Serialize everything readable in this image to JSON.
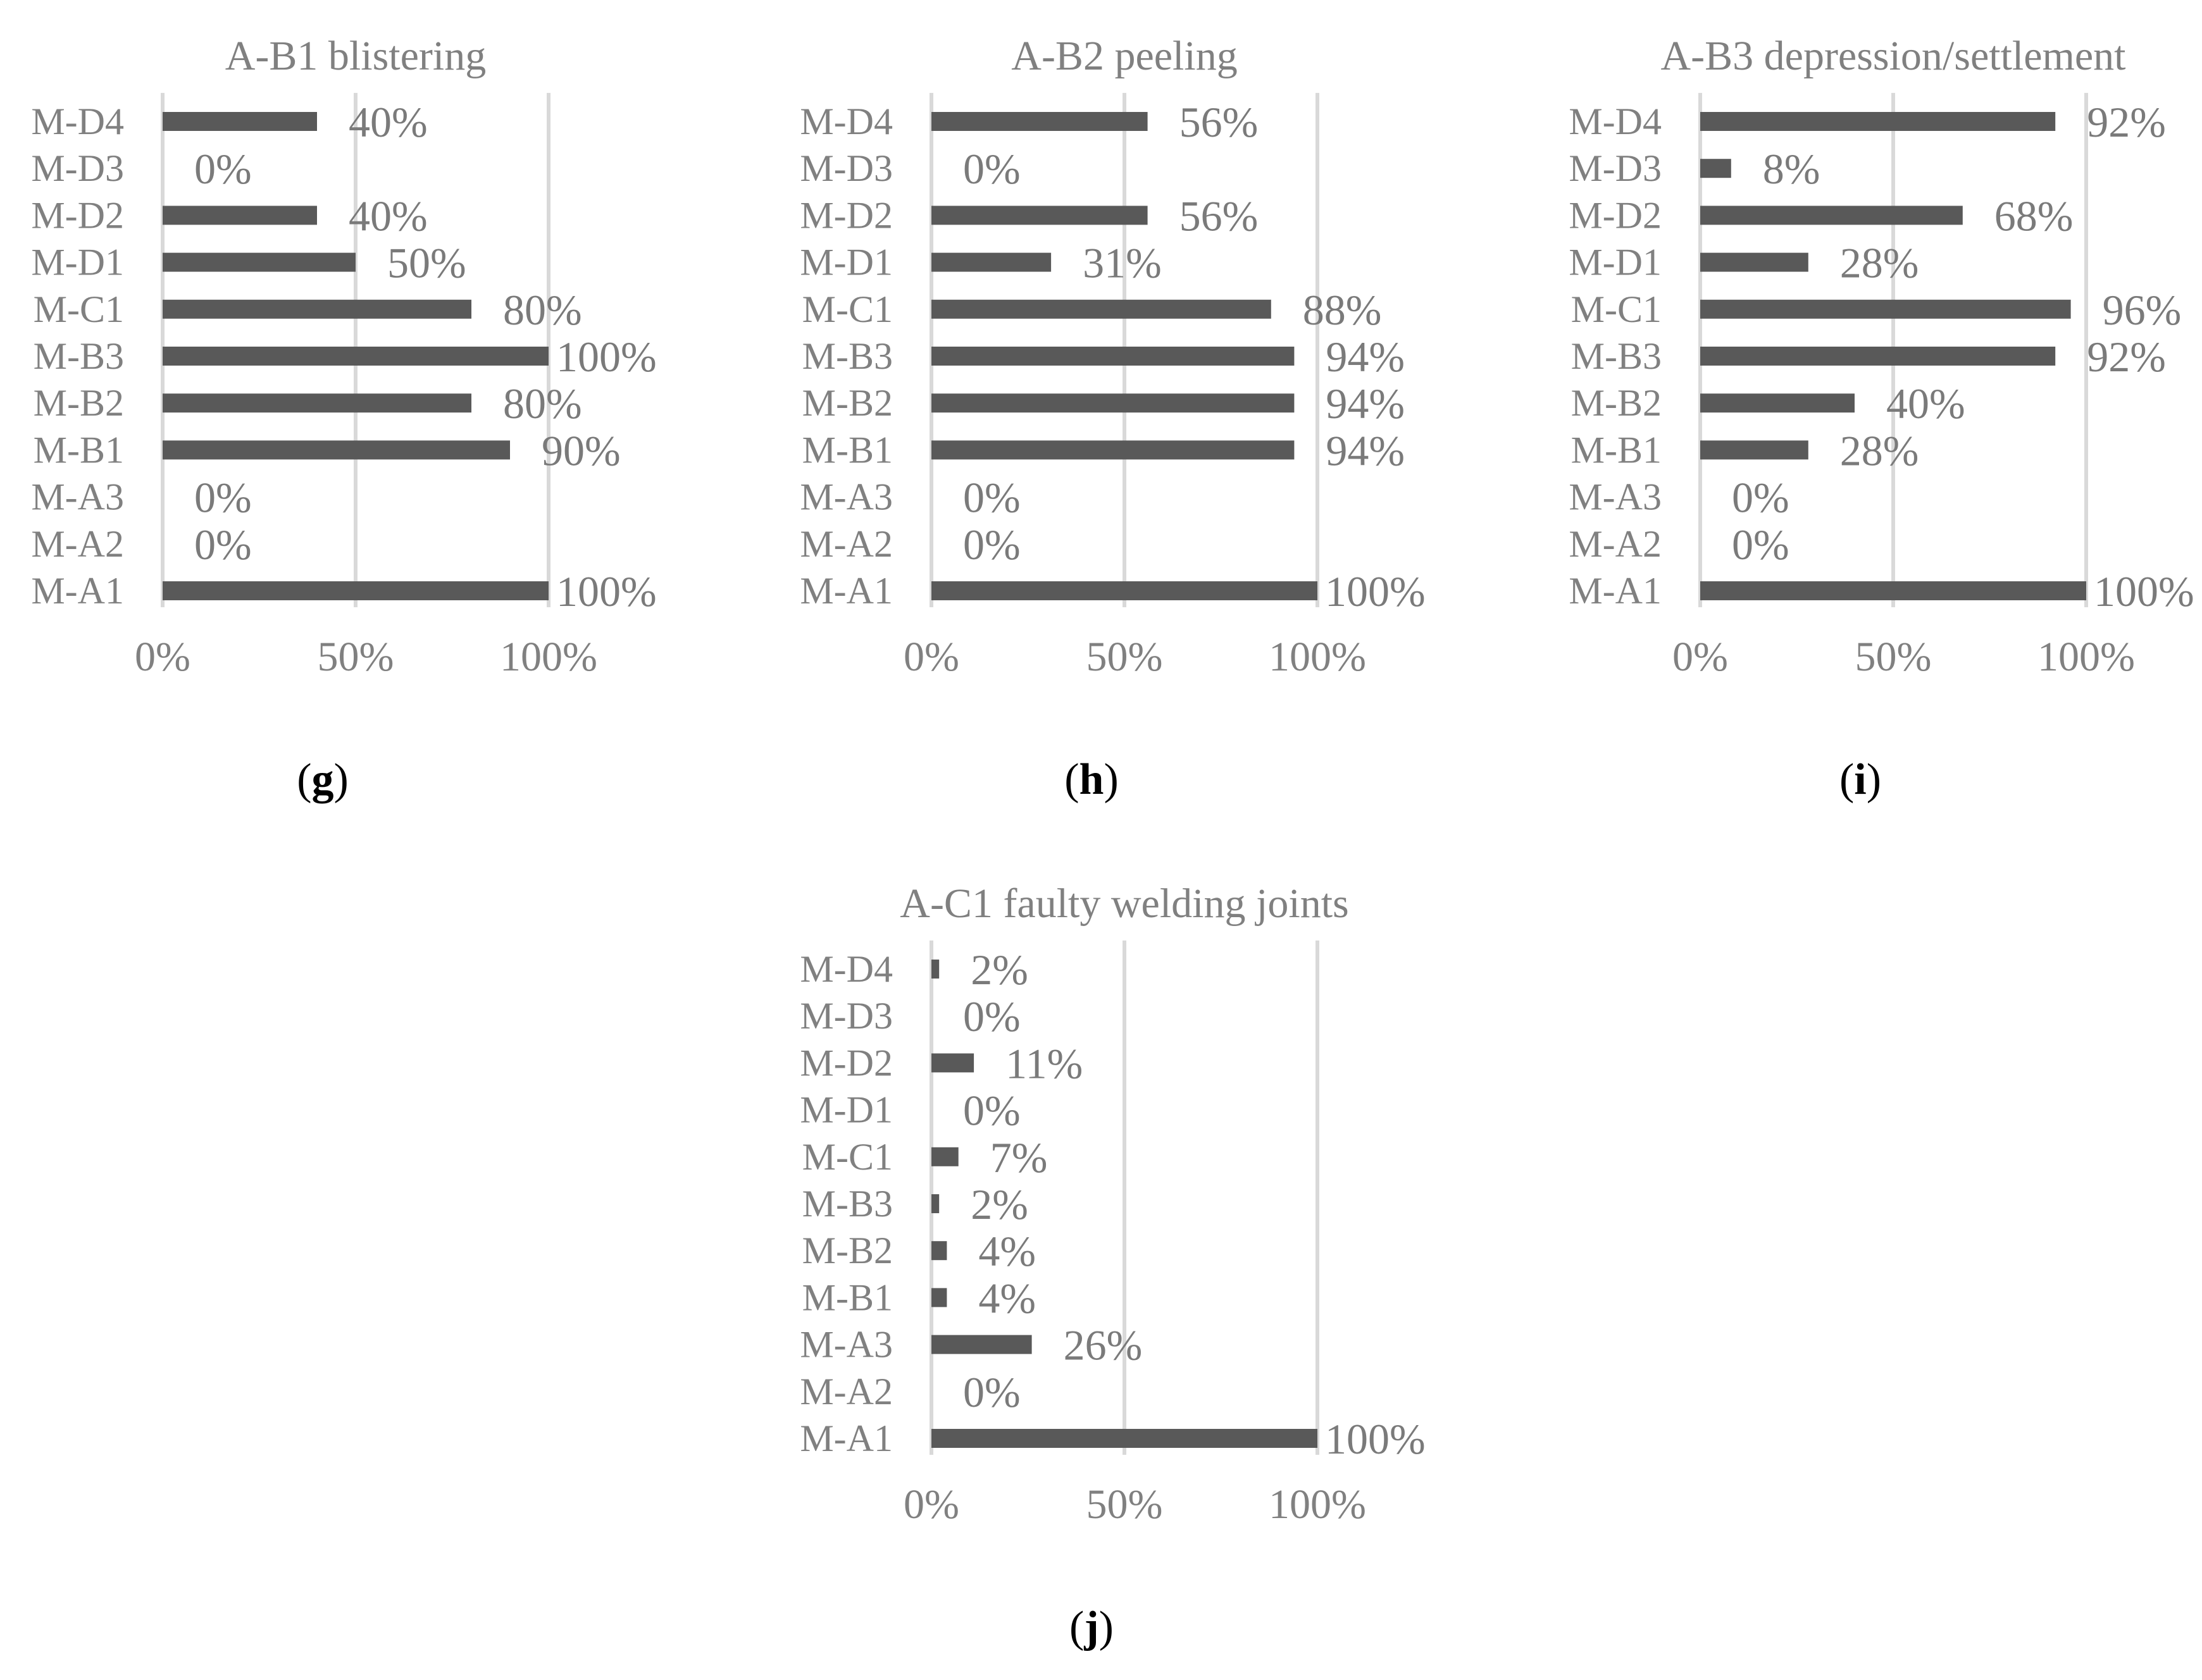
{
  "chart_data": [
    {
      "type": "bar",
      "orientation": "horizontal",
      "title": "A-B1 blistering",
      "caption_letter": "g",
      "categories": [
        "M-A1",
        "M-A2",
        "M-A3",
        "M-B1",
        "M-B2",
        "M-B3",
        "M-C1",
        "M-D1",
        "M-D2",
        "M-D3",
        "M-D4"
      ],
      "values": [
        100,
        0,
        0,
        90,
        80,
        100,
        80,
        50,
        40,
        0,
        40
      ],
      "value_labels": [
        "100%",
        "0%",
        "0%",
        "90%",
        "80%",
        "100%",
        "80%",
        "50%",
        "40%",
        "0%",
        "40%"
      ],
      "xticks": [
        "0%",
        "50%",
        "100%"
      ],
      "xlim": [
        0,
        100
      ],
      "grid": true,
      "legend": "none",
      "bar_color": "#595959"
    },
    {
      "type": "bar",
      "orientation": "horizontal",
      "title": "A-B2 peeling",
      "caption_letter": "h",
      "categories": [
        "M-A1",
        "M-A2",
        "M-A3",
        "M-B1",
        "M-B2",
        "M-B3",
        "M-C1",
        "M-D1",
        "M-D2",
        "M-D3",
        "M-D4"
      ],
      "values": [
        100,
        0,
        0,
        94,
        94,
        94,
        88,
        31,
        56,
        0,
        56
      ],
      "value_labels": [
        "100%",
        "0%",
        "0%",
        "94%",
        "94%",
        "94%",
        "88%",
        "31%",
        "56%",
        "0%",
        "56%"
      ],
      "xticks": [
        "0%",
        "50%",
        "100%"
      ],
      "xlim": [
        0,
        100
      ],
      "grid": true,
      "legend": "none",
      "bar_color": "#595959"
    },
    {
      "type": "bar",
      "orientation": "horizontal",
      "title": "A-B3 depression/settlement",
      "caption_letter": "i",
      "categories": [
        "M-A1",
        "M-A2",
        "M-A3",
        "M-B1",
        "M-B2",
        "M-B3",
        "M-C1",
        "M-D1",
        "M-D2",
        "M-D3",
        "M-D4"
      ],
      "values": [
        100,
        0,
        0,
        28,
        40,
        92,
        96,
        28,
        68,
        8,
        92
      ],
      "value_labels": [
        "100%",
        "0%",
        "0%",
        "28%",
        "40%",
        "92%",
        "96%",
        "28%",
        "68%",
        "8%",
        "92%"
      ],
      "xticks": [
        "0%",
        "50%",
        "100%"
      ],
      "xlim": [
        0,
        100
      ],
      "grid": true,
      "legend": "none",
      "bar_color": "#595959"
    },
    {
      "type": "bar",
      "orientation": "horizontal",
      "title": "A-C1 faulty welding joints",
      "caption_letter": "j",
      "categories": [
        "M-A1",
        "M-A2",
        "M-A3",
        "M-B1",
        "M-B2",
        "M-B3",
        "M-C1",
        "M-D1",
        "M-D2",
        "M-D3",
        "M-D4"
      ],
      "values": [
        100,
        0,
        26,
        4,
        4,
        2,
        7,
        0,
        11,
        0,
        2
      ],
      "value_labels": [
        "100%",
        "0%",
        "26%",
        "4%",
        "4%",
        "2%",
        "7%",
        "0%",
        "11%",
        "0%",
        "2%"
      ],
      "xticks": [
        "0%",
        "50%",
        "100%"
      ],
      "xlim": [
        0,
        100
      ],
      "grid": true,
      "legend": "none",
      "bar_color": "#595959"
    }
  ]
}
